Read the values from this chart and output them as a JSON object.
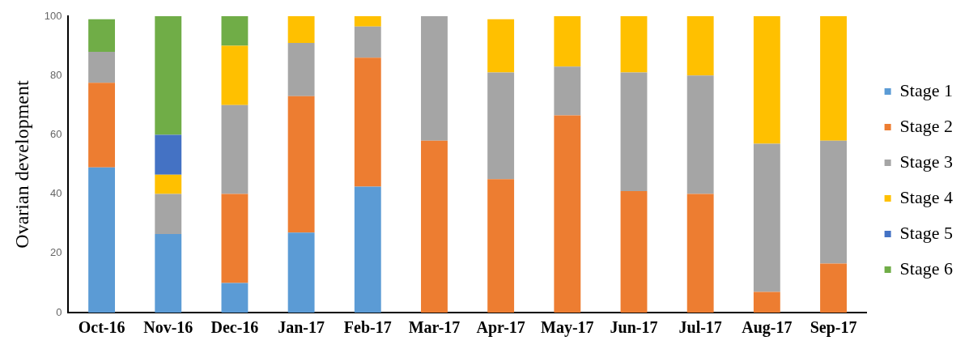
{
  "chart_data": {
    "type": "bar",
    "stacked": true,
    "ylabel": "Ovarian development",
    "categories": [
      "Oct-16",
      "Nov-16",
      "Dec-16",
      "Jan-17",
      "Feb-17",
      "Mar-17",
      "Apr-17",
      "May-17",
      "Jun-17",
      "Jul-17",
      "Aug-17",
      "Sep-17"
    ],
    "series": [
      {
        "name": "Stage 1",
        "color": "#5b9bd5",
        "values": [
          49,
          26.5,
          10,
          27,
          42.5,
          0,
          0,
          0,
          0,
          0,
          0,
          0
        ]
      },
      {
        "name": "Stage 2",
        "color": "#ed7d31",
        "values": [
          28.5,
          0,
          30,
          46,
          43.5,
          58,
          45,
          66.5,
          41,
          40,
          7,
          16.5
        ]
      },
      {
        "name": "Stage 3",
        "color": "#a5a5a5",
        "values": [
          10.5,
          13.5,
          30,
          18,
          10.5,
          42,
          36,
          16.5,
          40,
          40,
          50,
          41.5
        ]
      },
      {
        "name": "Stage 4",
        "color": "#ffc000",
        "values": [
          0,
          6.5,
          20,
          9,
          3.5,
          0,
          18,
          17,
          19,
          20,
          43,
          42
        ]
      },
      {
        "name": "Stage 5",
        "color": "#4472c4",
        "values": [
          0,
          13.5,
          0,
          0,
          0,
          0,
          0,
          0,
          0,
          0,
          0,
          0
        ]
      },
      {
        "name": "Stage 6",
        "color": "#70ad47",
        "values": [
          11,
          40,
          10,
          0,
          0,
          0,
          0,
          0,
          0,
          0,
          0,
          0
        ]
      }
    ],
    "ylim": [
      0,
      100
    ],
    "yticks": [
      0,
      20,
      40,
      60,
      80,
      100
    ],
    "grid": false,
    "legend": "right"
  }
}
